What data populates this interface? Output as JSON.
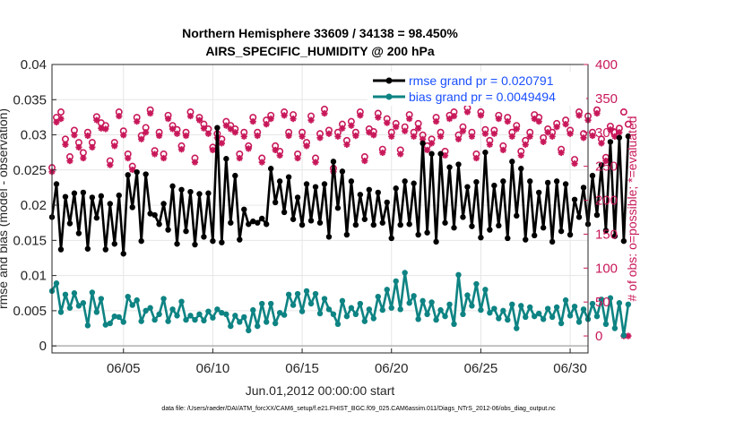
{
  "chart_data": {
    "type": "line",
    "title": "Northern Hemisphere 33609 / 34138 = 98.450%",
    "subtitle": "AIRS_SPECIFIC_HUMIDITY @ 200 hPa",
    "xlabel": "Jun.01,2012 00:00:00 start",
    "ylabel": "rmse and bias (model - observation)",
    "ylabel_right": "# of obs: o=possible; *=evaluated",
    "footnote": "data file: /Users/raeder/DAI/ATM_forcXX/CAM6_setup/f.e21.FHIST_BGC.f09_025.CAM6assim.011/Diags_NTrS_2012-06/obs_diag_output.nc",
    "xlim": [
      1,
      31
    ],
    "ylim": [
      -0.001,
      0.04
    ],
    "ylim_right": [
      -25,
      400
    ],
    "x_ticks": [
      5,
      10,
      15,
      20,
      25,
      30
    ],
    "x_tick_labels": [
      "06/05",
      "06/10",
      "06/15",
      "06/20",
      "06/25",
      "06/30"
    ],
    "y_ticks": [
      0,
      0.005,
      0.01,
      0.015,
      0.02,
      0.025,
      0.03,
      0.035,
      0.04
    ],
    "y_tick_labels": [
      "0",
      "0.005",
      "0.01",
      "0.015",
      "0.02",
      "0.025",
      "0.03",
      "0.035",
      "0.04"
    ],
    "y_right_ticks": [
      0,
      50,
      100,
      150,
      200,
      250,
      300,
      350,
      400
    ],
    "y_right_tick_labels": [
      "0",
      "50",
      "100",
      "150",
      "200",
      "250",
      "300",
      "350",
      "400"
    ],
    "series": [
      {
        "name": "rmse grand pr = 0.020791",
        "color": "#000000",
        "step_days": 0.25,
        "start_x": 1.0,
        "values": [
          0.0183,
          0.023,
          0.0137,
          0.0212,
          0.0174,
          0.0217,
          0.016,
          0.0218,
          0.0138,
          0.0211,
          0.0182,
          0.0213,
          0.0137,
          0.0202,
          0.0145,
          0.0214,
          0.0131,
          0.0243,
          0.0197,
          0.0247,
          0.0149,
          0.0244,
          0.0188,
          0.0186,
          0.0173,
          0.0202,
          0.0165,
          0.0227,
          0.0145,
          0.0222,
          0.0163,
          0.0219,
          0.0144,
          0.0216,
          0.0155,
          0.0217,
          0.0149,
          0.031,
          0.0147,
          0.0266,
          0.0175,
          0.0242,
          0.0151,
          0.0194,
          0.0173,
          0.0177,
          0.0175,
          0.0181,
          0.0173,
          0.0252,
          0.0204,
          0.0234,
          0.019,
          0.024,
          0.018,
          0.0211,
          0.0172,
          0.023,
          0.0178,
          0.0226,
          0.0175,
          0.023,
          0.0155,
          0.0262,
          0.0196,
          0.0248,
          0.0158,
          0.0234,
          0.0172,
          0.0215,
          0.018,
          0.0222,
          0.0172,
          0.0218,
          0.0175,
          0.0204,
          0.0153,
          0.0224,
          0.0172,
          0.0234,
          0.0173,
          0.0231,
          0.0158,
          0.0288,
          0.0161,
          0.0273,
          0.0148,
          0.0273,
          0.0175,
          0.0254,
          0.0168,
          0.0258,
          0.0183,
          0.0226,
          0.017,
          0.0233,
          0.0154,
          0.0275,
          0.0165,
          0.0228,
          0.0171,
          0.0234,
          0.0153,
          0.0262,
          0.0185,
          0.0252,
          0.0151,
          0.0234,
          0.0157,
          0.0218,
          0.0168,
          0.0232,
          0.0148,
          0.0234,
          0.0163,
          0.023,
          0.0158,
          0.0208,
          0.0183,
          0.0225,
          0.0173,
          0.0242,
          0.0186,
          0.0257,
          0.0164,
          0.029,
          0.0156,
          0.0296,
          0.0149,
          0.0298
        ]
      },
      {
        "name": "bias grand pr = 0.0049494",
        "color": "#0e8383",
        "step_days": 0.25,
        "start_x": 1.0,
        "values": [
          0.0078,
          0.0089,
          0.0048,
          0.0073,
          0.0054,
          0.0075,
          0.0057,
          0.0061,
          0.0029,
          0.0076,
          0.0048,
          0.0067,
          0.003,
          0.0032,
          0.0042,
          0.0041,
          0.0034,
          0.007,
          0.0058,
          0.0065,
          0.0035,
          0.005,
          0.0054,
          0.0037,
          0.0045,
          0.0067,
          0.0035,
          0.0052,
          0.0043,
          0.0063,
          0.0037,
          0.0043,
          0.0037,
          0.0045,
          0.0036,
          0.0049,
          0.004,
          0.0052,
          0.0047,
          0.0045,
          0.0028,
          0.0043,
          0.0034,
          0.0041,
          0.0022,
          0.0051,
          0.0028,
          0.006,
          0.0034,
          0.006,
          0.0032,
          0.0047,
          0.0044,
          0.0073,
          0.0058,
          0.0074,
          0.0049,
          0.0078,
          0.006,
          0.0074,
          0.0046,
          0.0067,
          0.0052,
          0.0045,
          0.0031,
          0.0064,
          0.0042,
          0.0054,
          0.0045,
          0.006,
          0.0035,
          0.0052,
          0.0039,
          0.007,
          0.0051,
          0.008,
          0.0054,
          0.0092,
          0.0052,
          0.0104,
          0.0061,
          0.0071,
          0.0038,
          0.0064,
          0.0045,
          0.0062,
          0.0037,
          0.0051,
          0.0042,
          0.0059,
          0.0031,
          0.0101,
          0.0045,
          0.0072,
          0.0057,
          0.0088,
          0.0051,
          0.008,
          0.0047,
          0.0053,
          0.0039,
          0.005,
          0.0037,
          0.0059,
          0.0025,
          0.0057,
          0.0041,
          0.0055,
          0.0042,
          0.0046,
          0.0038,
          0.0053,
          0.0041,
          0.0055,
          0.0032,
          0.0065,
          0.0043,
          0.0056,
          0.0034,
          0.0052,
          0.0038,
          0.006,
          0.0042,
          0.0066,
          0.0031,
          0.0068,
          0.0025,
          0.0061,
          0.0015,
          0.0059
        ]
      },
      {
        "name": "# of obs possible (o)",
        "color": "#c8185a",
        "axis": "right",
        "marker": "o",
        "step_days": 0.25,
        "start_x": 1.0,
        "values": [
          248,
          322,
          330,
          290,
          264,
          303,
          285,
          270,
          300,
          285,
          323,
          314,
          310,
          258,
          285,
          330,
          302,
          268,
          250,
          322,
          295,
          307,
          333,
          273,
          300,
          268,
          325,
          310,
          304,
          280,
          300,
          330,
          262,
          322,
          312,
          305,
          278,
          298,
          290,
          316,
          310,
          305,
          268,
          300,
          280,
          322,
          300,
          262,
          318,
          325,
          280,
          272,
          330,
          300,
          326,
          268,
          300,
          285,
          324,
          262,
          298,
          334,
          303,
          247,
          300,
          312,
          288,
          316,
          300,
          330,
          264,
          305,
          301,
          328,
          275,
          320,
          300,
          313,
          274,
          308,
          326,
          300,
          313,
          296,
          280,
          290,
          322,
          300,
          272,
          325,
          330,
          296,
          308,
          336,
          300,
          268,
          330,
          304,
          288,
          303,
          325,
          280,
          322,
          300,
          310,
          272,
          288,
          300,
          326,
          322,
          292,
          305,
          300,
          313,
          275,
          318,
          303,
          260,
          330,
          298,
          324,
          300,
          333,
          290,
          263,
          309,
          300,
          306,
          330,
          312
        ]
      },
      {
        "name": "# of obs evaluated (*)",
        "color": "#c8185a",
        "axis": "right",
        "marker": "*",
        "step_days": 0.25,
        "start_x": 1.0,
        "values": [
          242,
          315,
          320,
          282,
          258,
          296,
          278,
          262,
          295,
          278,
          318,
          306,
          305,
          252,
          280,
          324,
          296,
          262,
          245,
          316,
          290,
          300,
          328,
          268,
          295,
          262,
          320,
          305,
          298,
          275,
          295,
          324,
          256,
          318,
          306,
          298,
          274,
          292,
          284,
          310,
          305,
          300,
          262,
          294,
          276,
          316,
          295,
          256,
          312,
          320,
          274,
          266,
          325,
          295,
          320,
          262,
          294,
          280,
          318,
          256,
          292,
          328,
          298,
          242,
          294,
          306,
          282,
          310,
          295,
          325,
          258,
          300,
          296,
          322,
          270,
          314,
          294,
          308,
          268,
          302,
          320,
          294,
          306,
          290,
          274,
          284,
          316,
          294,
          266,
          320,
          324,
          290,
          302,
          330,
          294,
          262,
          325,
          298,
          282,
          298,
          320,
          274,
          316,
          294,
          305,
          266,
          282,
          294,
          320,
          316,
          286,
          300,
          294,
          308,
          270,
          312,
          298,
          254,
          325,
          292,
          318,
          295,
          328,
          284,
          258,
          304,
          294,
          300,
          0,
          0
        ]
      }
    ]
  }
}
